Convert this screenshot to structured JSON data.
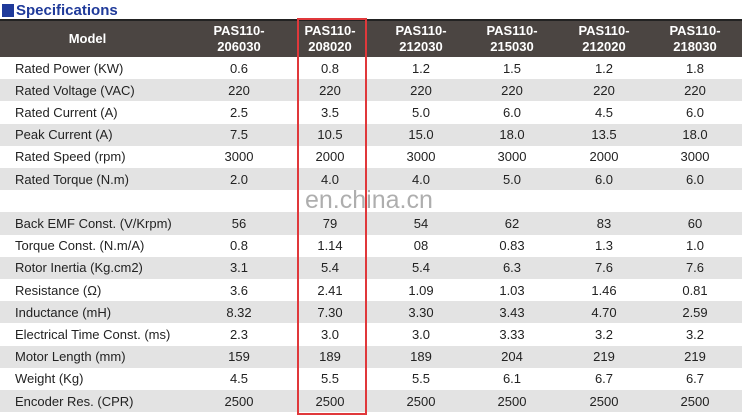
{
  "section_title": "Specifications",
  "table": {
    "header": [
      "Model",
      "PAS110-\n206030",
      "PAS110-\n208020",
      "PAS110-\n212030",
      "PAS110-\n215030",
      "PAS110-\n212020",
      "PAS110-\n218030"
    ],
    "highlighted_column": "PAS110-208020",
    "highlight_color": "#e0383b",
    "rows": [
      [
        "Rated Power (KW)",
        "0.6",
        "0.8",
        "1.2",
        "1.5",
        "1.2",
        "1.8"
      ],
      [
        "Rated Voltage (VAC)",
        "220",
        "220",
        "220",
        "220",
        "220",
        "220"
      ],
      [
        "Rated Current (A)",
        "2.5",
        "3.5",
        "5.0",
        "6.0",
        "4.5",
        "6.0"
      ],
      [
        "Peak Current (A)",
        "7.5",
        "10.5",
        "15.0",
        "18.0",
        "13.5",
        "18.0"
      ],
      [
        "Rated Speed (rpm)",
        "3000",
        "2000",
        "3000",
        "3000",
        "2000",
        "3000"
      ],
      [
        "Rated Torque (N.m)",
        "2.0",
        "4.0",
        "4.0",
        "5.0",
        "6.0",
        "6.0"
      ],
      [
        "",
        "",
        "",
        "",
        "",
        "",
        ""
      ],
      [
        "Back EMF Const. (V/Krpm)",
        "56",
        "79",
        "54",
        "62",
        "83",
        "60"
      ],
      [
        "Torque Const. (N.m/A)",
        "0.8",
        "1.14",
        "08",
        "0.83",
        "1.3",
        "1.0"
      ],
      [
        "Rotor Inertia (Kg.cm2)",
        "3.1",
        "5.4",
        "5.4",
        "6.3",
        "7.6",
        "7.6"
      ],
      [
        "Resistance (Ω)",
        "3.6",
        "2.41",
        "1.09",
        "1.03",
        "1.46",
        "0.81"
      ],
      [
        "Inductance (mH)",
        "8.32",
        "7.30",
        "3.30",
        "3.43",
        "4.70",
        "2.59"
      ],
      [
        "Electrical Time Const. (ms)",
        "2.3",
        "3.0",
        "3.0",
        "3.33",
        "3.2",
        "3.2"
      ],
      [
        "Motor Length (mm)",
        "159",
        "189",
        "189",
        "204",
        "219",
        "219"
      ],
      [
        "Weight (Kg)",
        "4.5",
        "5.5",
        "5.5",
        "6.1",
        "6.7",
        "6.7"
      ],
      [
        "Encoder Res. (CPR)",
        "2500",
        "2500",
        "2500",
        "2500",
        "2500",
        "2500"
      ]
    ]
  },
  "watermark": "en.china.cn"
}
